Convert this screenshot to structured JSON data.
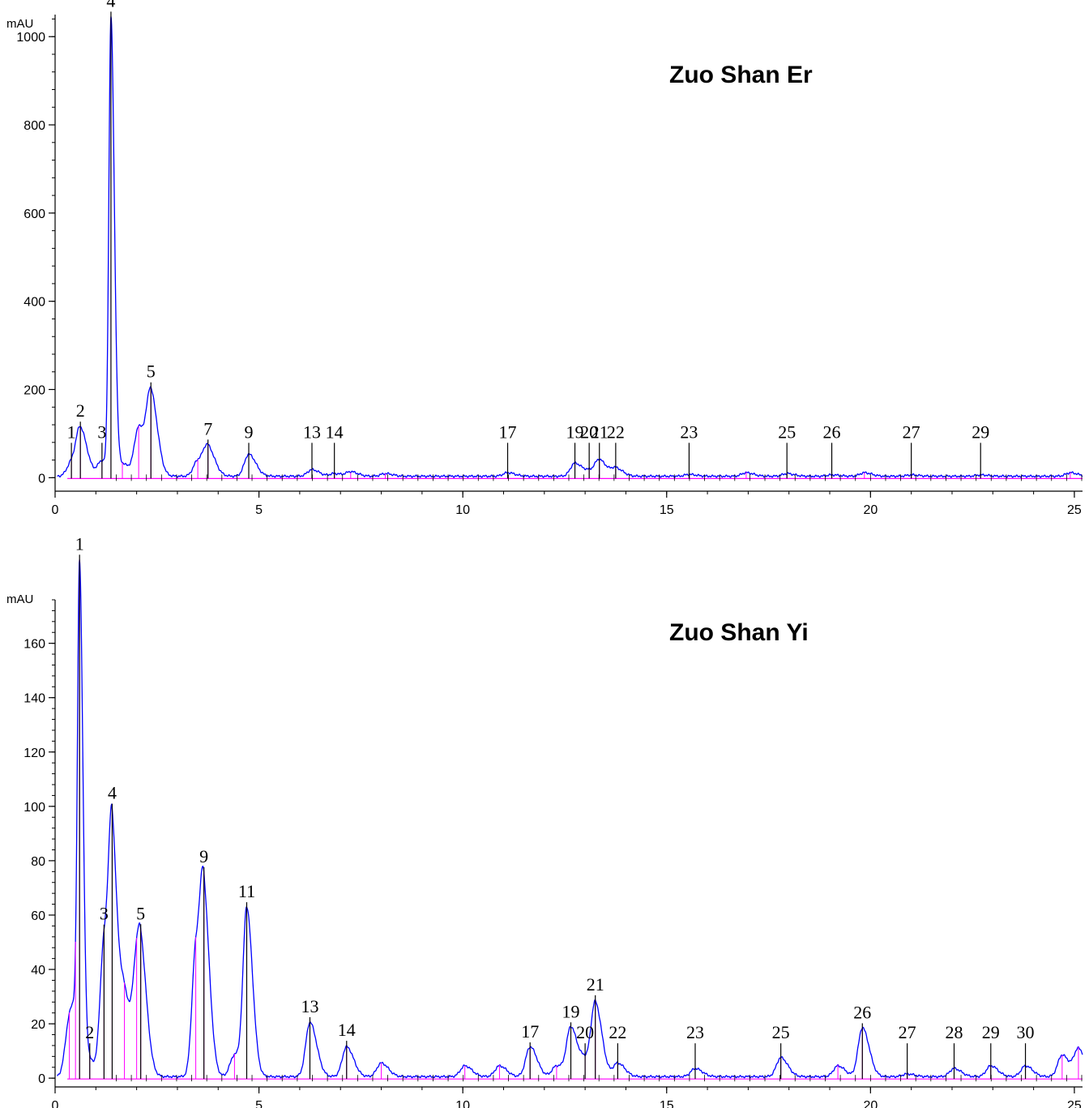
{
  "chart_data": [
    {
      "type": "line",
      "title": "Zuo Shan Er",
      "ylabel": "mAU",
      "xlim": [
        0,
        25.2
      ],
      "ylim": [
        -60,
        1050
      ],
      "xticks": [
        0,
        5,
        10,
        15,
        20,
        25
      ],
      "yticks": [
        0,
        200,
        400,
        600,
        800,
        1000
      ],
      "baseline_color": "#ff00ff",
      "line_color": "#0000ff",
      "peaks": [
        {
          "label": "1",
          "x": 0.4,
          "y": 30
        },
        {
          "label": "2",
          "x": 0.62,
          "y": 100
        },
        {
          "label": "3",
          "x": 1.15,
          "y": 35
        },
        {
          "label": "4",
          "x": 1.37,
          "y": 1025
        },
        {
          "label": "5",
          "x": 2.35,
          "y": 180
        },
        {
          "label": "7",
          "x": 3.75,
          "y": 60
        },
        {
          "label": "9",
          "x": 4.75,
          "y": 50
        },
        {
          "label": "13",
          "x": 6.3,
          "y": 15
        },
        {
          "label": "14",
          "x": 6.85,
          "y": 6
        },
        {
          "label": "17",
          "x": 11.1,
          "y": 8
        },
        {
          "label": "19",
          "x": 12.75,
          "y": 30
        },
        {
          "label": "20",
          "x": 13.1,
          "y": 10
        },
        {
          "label": "21",
          "x": 13.35,
          "y": 35
        },
        {
          "label": "22",
          "x": 13.75,
          "y": 18
        },
        {
          "label": "23",
          "x": 15.55,
          "y": 4
        },
        {
          "label": "25",
          "x": 17.95,
          "y": 6
        },
        {
          "label": "26",
          "x": 19.05,
          "y": 3
        },
        {
          "label": "27",
          "x": 21.0,
          "y": 3
        },
        {
          "label": "29",
          "x": 22.7,
          "y": 3
        }
      ],
      "minor_peaks": [
        {
          "x": 1.65,
          "y": 28
        },
        {
          "x": 2.05,
          "y": 110
        },
        {
          "x": 3.5,
          "y": 35
        },
        {
          "x": 7.25,
          "y": 10
        },
        {
          "x": 8.1,
          "y": 6
        },
        {
          "x": 16.95,
          "y": 8
        },
        {
          "x": 19.85,
          "y": 8
        },
        {
          "x": 24.9,
          "y": 8
        }
      ]
    },
    {
      "type": "line",
      "title": "Zuo Shan Yi",
      "ylabel": "mAU",
      "xlim": [
        0,
        25.2
      ],
      "ylim": [
        -8,
        176
      ],
      "xticks": [
        0,
        5,
        10,
        15,
        20,
        25
      ],
      "yticks": [
        0,
        20,
        40,
        60,
        80,
        100,
        120,
        140,
        160
      ],
      "baseline_color": "#ff00ff",
      "line_color": "#0000ff",
      "peaks": [
        {
          "label": "1",
          "x": 0.6,
          "y": 174
        },
        {
          "label": "2",
          "x": 0.85,
          "y": 5
        },
        {
          "label": "3",
          "x": 1.2,
          "y": 49
        },
        {
          "label": "4",
          "x": 1.4,
          "y": 78
        },
        {
          "label": "5",
          "x": 2.1,
          "y": 30
        },
        {
          "label": "9",
          "x": 3.65,
          "y": 56
        },
        {
          "label": "11",
          "x": 4.7,
          "y": 61
        },
        {
          "label": "13",
          "x": 6.25,
          "y": 20
        },
        {
          "label": "14",
          "x": 7.15,
          "y": 11
        },
        {
          "label": "17",
          "x": 11.65,
          "y": 11
        },
        {
          "label": "19",
          "x": 12.65,
          "y": 18
        },
        {
          "label": "20",
          "x": 13.0,
          "y": 5
        },
        {
          "label": "21",
          "x": 13.25,
          "y": 26
        },
        {
          "label": "22",
          "x": 13.8,
          "y": 5
        },
        {
          "label": "23",
          "x": 15.7,
          "y": 3
        },
        {
          "label": "25",
          "x": 17.8,
          "y": 7
        },
        {
          "label": "26",
          "x": 19.8,
          "y": 18
        },
        {
          "label": "27",
          "x": 20.9,
          "y": 1
        },
        {
          "label": "28",
          "x": 22.05,
          "y": 3
        },
        {
          "label": "29",
          "x": 22.95,
          "y": 4
        },
        {
          "label": "30",
          "x": 23.8,
          "y": 4
        }
      ],
      "minor_peaks": [
        {
          "x": 0.35,
          "y": 19
        },
        {
          "x": 0.5,
          "y": 12
        },
        {
          "x": 1.7,
          "y": 28
        },
        {
          "x": 2.0,
          "y": 28
        },
        {
          "x": 3.45,
          "y": 46
        },
        {
          "x": 4.4,
          "y": 8
        },
        {
          "x": 8.0,
          "y": 5
        },
        {
          "x": 10.05,
          "y": 4
        },
        {
          "x": 10.9,
          "y": 4
        },
        {
          "x": 12.3,
          "y": 4
        },
        {
          "x": 19.2,
          "y": 4
        },
        {
          "x": 24.7,
          "y": 8
        },
        {
          "x": 25.1,
          "y": 10
        }
      ]
    }
  ]
}
